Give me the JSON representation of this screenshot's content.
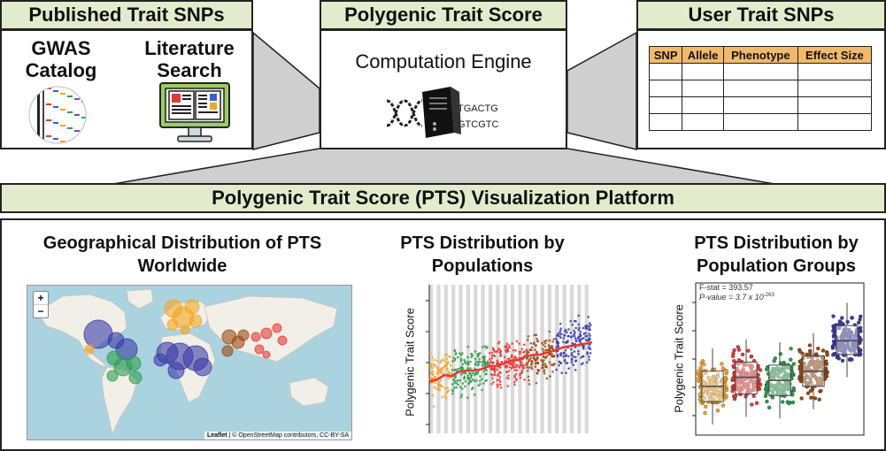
{
  "top": {
    "published": {
      "header": "Published Trait SNPs",
      "gwas_label": "GWAS\nCatalog",
      "literature_label": "Literature\nSearch"
    },
    "pts": {
      "header": "Polygenic Trait Score",
      "engine_label": "Computation Engine",
      "dna_line1": "TGACTG",
      "dna_line2": "GTCGTC"
    },
    "user": {
      "header": "User Trait SNPs",
      "table_headers": [
        "SNP",
        "Allele",
        "Phenotype",
        "Effect Size"
      ],
      "empty_rows": 4
    }
  },
  "platform": {
    "header": "Polygenic Trait Score (PTS) Visualization Platform",
    "map_panel": {
      "title": "Geographical Distribution of PTS\nWorldwide",
      "zoom_in": "+",
      "zoom_out": "−",
      "attribution_leaflet": "Leaflet",
      "attribution_rest": " | © OpenStreetMap contributors, CC-BY-SA"
    },
    "pop_panel": {
      "title": "PTS Distribution by\nPopulations",
      "ylabel": "Polygenic Trait Score"
    },
    "group_panel": {
      "title": "PTS Distribution by\nPopulation Groups",
      "ylabel": "Polygenic Trait Score",
      "fstat": "F-stat = 393.57",
      "pvalue_prefix": "P-value = 3.7 x 10",
      "pvalue_exp": "-263"
    }
  },
  "colors": {
    "header_fill": "#e2ebcb",
    "orange": "#f5a623",
    "red": "#e53935",
    "green": "#2e9e4f",
    "brown": "#9b4a12",
    "blue": "#3a3aa8",
    "table_header": "#f1b96b",
    "map_water": "#aad3df",
    "map_land": "#f2efe9"
  },
  "chart_data": [
    {
      "type": "scatter",
      "title": "PTS Distribution by Populations",
      "ylabel": "Polygenic Trait Score",
      "groups": [
        "orange",
        "green",
        "red",
        "brown",
        "blue"
      ],
      "populations_per_group": [
        3,
        5,
        5,
        4,
        5
      ],
      "trend": "increasing"
    },
    {
      "type": "box",
      "title": "PTS Distribution by Population Groups",
      "ylabel": "Polygenic Trait Score",
      "categories": [
        "orange",
        "red",
        "green",
        "brown",
        "blue"
      ],
      "medians": [
        0.32,
        0.38,
        0.36,
        0.42,
        0.62
      ],
      "q1": [
        0.22,
        0.27,
        0.26,
        0.32,
        0.53
      ],
      "q3": [
        0.42,
        0.48,
        0.46,
        0.52,
        0.72
      ],
      "ylim": [
        0,
        1
      ],
      "fstat": 393.57
    }
  ]
}
